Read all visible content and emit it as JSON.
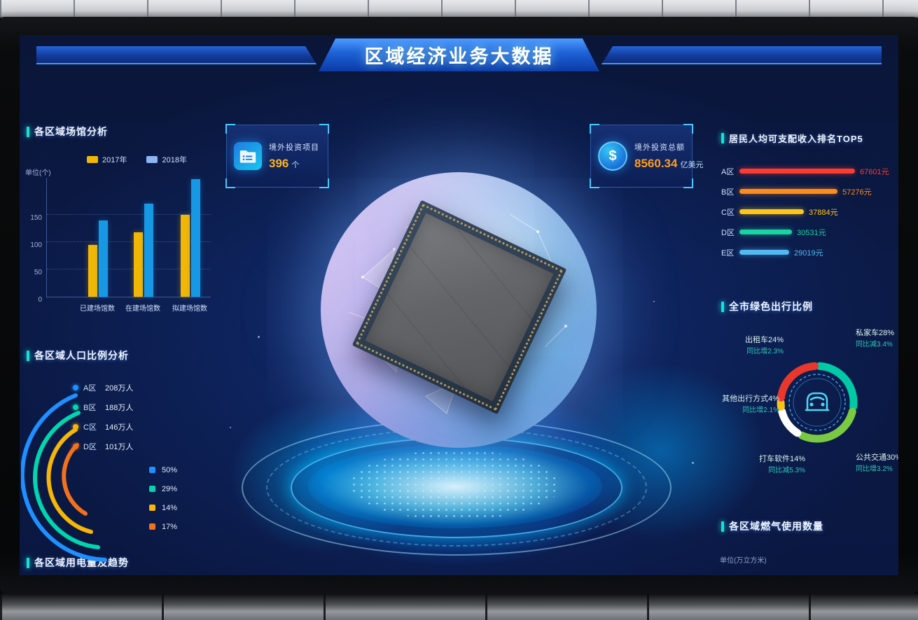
{
  "header": {
    "title": "区域经济业务大数据"
  },
  "panels": {
    "venues": {
      "title": "各区域场馆分析",
      "unit": "单位(个)"
    },
    "population": {
      "title": "各区域人口比例分析"
    },
    "electricity": {
      "title": "各区域用电量及趋势"
    },
    "gas": {
      "title": "各区域燃气使用数量",
      "unit": "单位(万立方米)"
    },
    "income": {
      "title": "居民人均可支配收入排名TOP5"
    },
    "green_travel": {
      "title": "全市绿色出行比例"
    },
    "invest_projects": {
      "title": "境外投资项目",
      "value": "396",
      "unit": "个"
    },
    "invest_total": {
      "title": "境外投资总额",
      "value": "8560.34",
      "unit": "亿美元"
    }
  },
  "icons": {
    "dollar": "$"
  },
  "chart_data": [
    {
      "type": "bar",
      "title": "各区域场馆分析",
      "unit": "单位(个)",
      "categories": [
        "已建场馆数",
        "在建场馆数",
        "拟建场馆数"
      ],
      "series": [
        {
          "name": "2017年",
          "color": "#f2b705",
          "values": [
            95,
            118,
            150
          ]
        },
        {
          "name": "2018年",
          "color": "#1798e5",
          "values": [
            140,
            170,
            215
          ]
        }
      ],
      "ylim": [
        0,
        220
      ],
      "yticks": [
        0,
        50,
        100,
        150
      ],
      "grid": true,
      "legend_position": "top"
    },
    {
      "type": "bar",
      "orientation": "horizontal",
      "title": "居民人均可支配收入排名TOP5",
      "categories": [
        "A区",
        "B区",
        "C区",
        "D区",
        "E区"
      ],
      "values": [
        67601,
        57276,
        37884,
        30531,
        29019
      ],
      "labels": [
        "67601元",
        "57276元",
        "37884元",
        "30531元",
        "29019元"
      ],
      "colors": [
        "#ff3b30",
        "#ff8c1a",
        "#ffc61a",
        "#19d3a2",
        "#54b9f0"
      ]
    },
    {
      "type": "pie",
      "title": "全市绿色出行比例",
      "slices": [
        {
          "label": "私家车",
          "pct": 28,
          "display": "私家车28%",
          "yoy": "同比减3.4%",
          "color": "#00c9a7"
        },
        {
          "label": "公共交通",
          "pct": 30,
          "display": "公共交通30%",
          "yoy": "同比增3.2%",
          "color": "#7ac943"
        },
        {
          "label": "打车软件",
          "pct": 14,
          "display": "打车软件14%",
          "yoy": "同比减5.3%",
          "color": "#ffffff"
        },
        {
          "label": "其他出行方式",
          "pct": 4,
          "display": "其他出行方式4%",
          "yoy": "同比增2.1%",
          "color": "#f5c518"
        },
        {
          "label": "出租车",
          "pct": 24,
          "display": "出租车24%",
          "yoy": "同比增2.3%",
          "color": "#e8372c"
        }
      ],
      "legend_position": "around",
      "center_icon": "car-icon"
    },
    {
      "type": "arc-rings",
      "title": "各区域人口比例分析",
      "rings": [
        {
          "region": "A区",
          "value": "208万人",
          "pct": "50%",
          "color": "#1e90ff"
        },
        {
          "region": "B区",
          "value": "188万人",
          "pct": "29%",
          "color": "#00d5b0"
        },
        {
          "region": "C区",
          "value": "146万人",
          "pct": "14%",
          "color": "#f5b60a"
        },
        {
          "region": "D区",
          "value": "101万人",
          "pct": "17%",
          "color": "#f2711c"
        }
      ]
    }
  ]
}
